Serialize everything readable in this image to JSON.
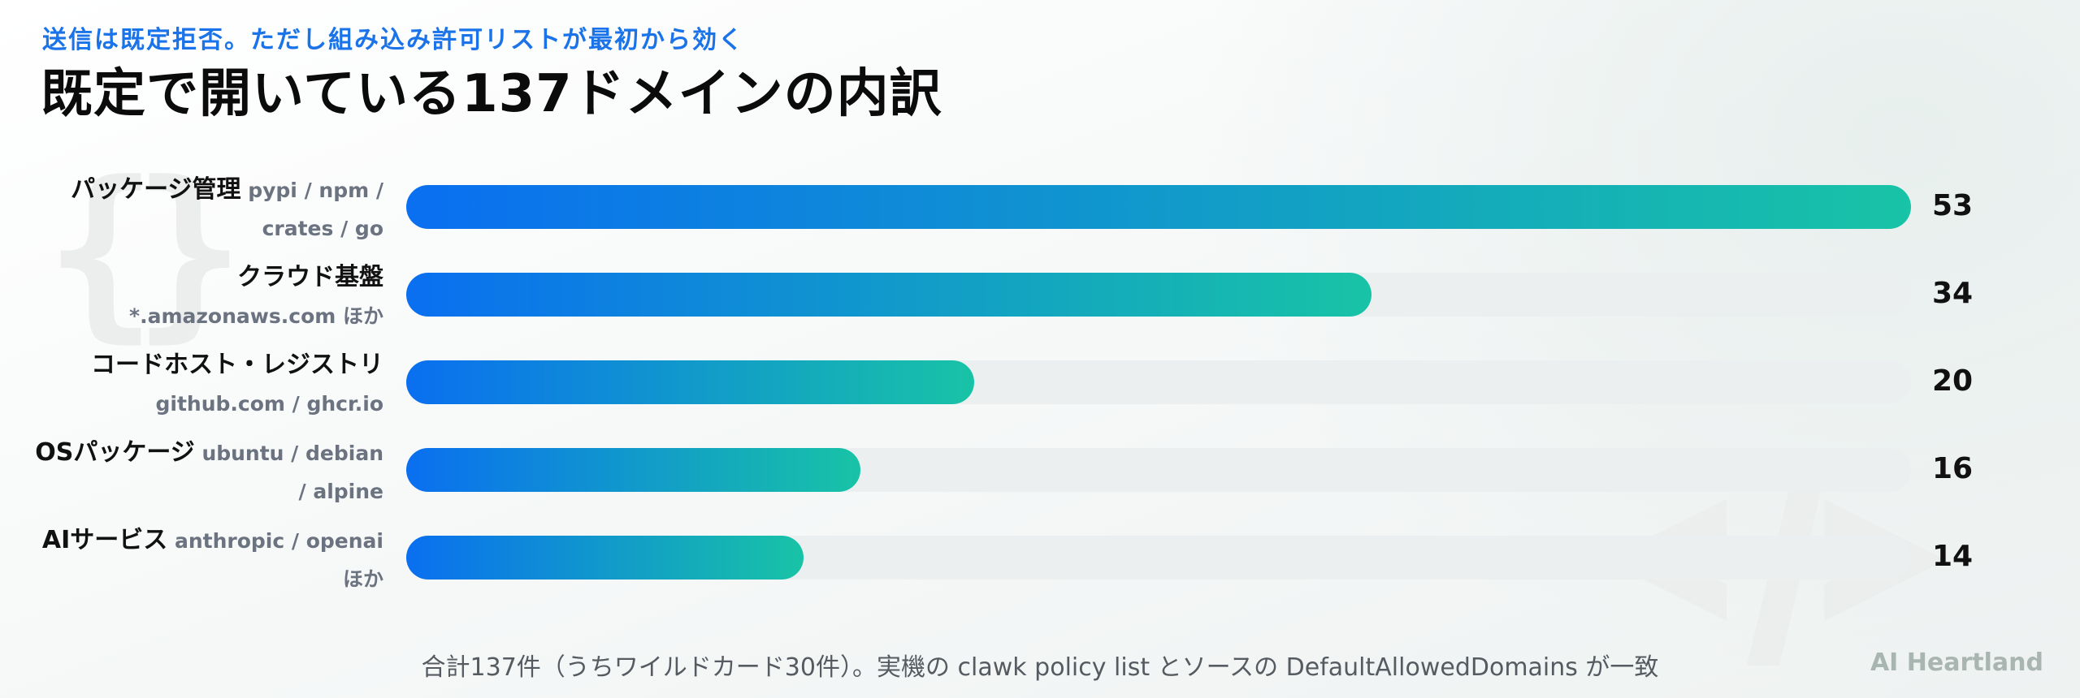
{
  "slide": {
    "kicker": "送信は既定拒否。ただし組み込み許可リストが最初から効く",
    "title": "既定で開いている137ドメインの内訳",
    "footnote": "合計137件（うちワイルドカード30件）。実機の clawk policy list とソースの DefaultAllowedDomains が一致",
    "brand": "AI Heartland"
  },
  "decorations": {
    "braces_icon": "curly-braces-icon",
    "arrows_icon": "code-arrows-icon"
  },
  "colors": {
    "bar_start": "#0a6ff0",
    "bar_end": "#18c3a6",
    "track": "#eceff0",
    "kicker": "#1a73e8"
  },
  "chart_data": {
    "type": "bar",
    "orientation": "horizontal",
    "categories": [
      "パッケージ管理",
      "クラウド基盤",
      "コードホスト・レジストリ",
      "OSパッケージ",
      "AIサービス"
    ],
    "category_details": [
      "pypi / npm / crates / go",
      "*.amazonaws.com ほか",
      "github.com / ghcr.io",
      "ubuntu / debian / alpine",
      "anthropic / openai ほか"
    ],
    "values": [
      53,
      34,
      20,
      16,
      14
    ],
    "xlim": [
      0,
      53
    ],
    "grid": false,
    "title": "既定で開いている137ドメインの内訳",
    "xlabel": "",
    "ylabel": ""
  }
}
